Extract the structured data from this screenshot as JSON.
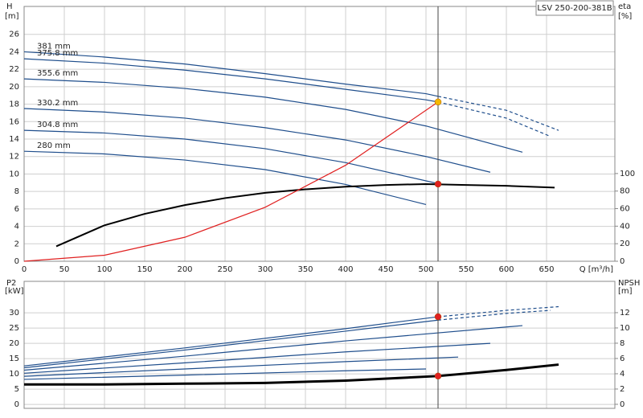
{
  "chart_data": [
    {
      "type": "line",
      "title": "LSV 250-200-381B",
      "x_label": "Q [m³/h]",
      "y_label": "H",
      "y_unit": "[m]",
      "y2_label": "eta",
      "y2_unit": "[%]",
      "xlim": [
        0,
        735
      ],
      "ylim": [
        0,
        29.2
      ],
      "y2lim": [
        0,
        290.5
      ],
      "xticks": [
        0,
        50,
        100,
        150,
        200,
        250,
        300,
        350,
        400,
        450,
        500,
        550,
        600,
        650
      ],
      "yticks": [
        0,
        2,
        4,
        6,
        8,
        10,
        12,
        14,
        16,
        18,
        20,
        22,
        24,
        26
      ],
      "y2ticks": [
        0,
        20,
        40,
        60,
        80,
        100
      ],
      "grid": true,
      "series": [
        {
          "name": "381 mm",
          "color": "#1f4e8c",
          "x": [
            0,
            100,
            200,
            300,
            400,
            500,
            515
          ],
          "values": [
            24,
            23.4,
            22.6,
            21.5,
            20.3,
            19.2,
            18.9
          ]
        },
        {
          "color": "#1f4e8c",
          "line_style": "dashed",
          "x": [
            515,
            600,
            665
          ],
          "values": [
            18.9,
            17.3,
            15.0
          ]
        },
        {
          "name": "375.8 mm",
          "color": "#1f4e8c",
          "x": [
            0,
            100,
            200,
            300,
            400,
            500,
            515
          ],
          "values": [
            23.2,
            22.7,
            21.9,
            20.9,
            19.7,
            18.5,
            18.25
          ]
        },
        {
          "color": "#1f4e8c",
          "line_style": "dashed",
          "x": [
            515,
            600,
            655
          ],
          "values": [
            18.25,
            16.4,
            14.3
          ]
        },
        {
          "name": "355.6 mm",
          "color": "#1f4e8c",
          "x": [
            0,
            100,
            200,
            300,
            400,
            500,
            620
          ],
          "values": [
            20.9,
            20.5,
            19.8,
            18.8,
            17.4,
            15.5,
            12.5
          ]
        },
        {
          "name": "330.2 mm",
          "color": "#1f4e8c",
          "x": [
            0,
            100,
            200,
            300,
            400,
            500,
            580
          ],
          "values": [
            17.5,
            17.1,
            16.4,
            15.3,
            13.9,
            12.0,
            10.2
          ]
        },
        {
          "name": "304.8 mm",
          "color": "#1f4e8c",
          "x": [
            0,
            100,
            200,
            300,
            400,
            515
          ],
          "values": [
            15.0,
            14.7,
            14.0,
            12.9,
            11.3,
            8.9
          ]
        },
        {
          "name": "280 mm",
          "color": "#1f4e8c",
          "x": [
            0,
            100,
            200,
            300,
            400,
            500
          ],
          "values": [
            12.6,
            12.3,
            11.6,
            10.5,
            8.8,
            6.5
          ]
        },
        {
          "color": "#000000",
          "axis": "y2",
          "width": 2,
          "x": [
            40,
            100,
            150,
            200,
            250,
            300,
            350,
            400,
            450,
            500,
            550,
            600,
            660
          ],
          "values": [
            17,
            41,
            54,
            64,
            72,
            78,
            82,
            85,
            87,
            88,
            87,
            86,
            84
          ]
        },
        {
          "color": "#e02020",
          "x": [
            0,
            100,
            200,
            300,
            400,
            515
          ],
          "values": [
            0,
            0.69,
            2.75,
            6.19,
            11.0,
            18.25
          ]
        }
      ],
      "vline": 515,
      "markers": [
        {
          "x": 515,
          "y": 18.25,
          "color": "#f5b800"
        },
        {
          "x": 515,
          "y": 88,
          "axis": "y2",
          "color": "#e02020"
        }
      ]
    },
    {
      "type": "line",
      "y_label": "P2",
      "y_unit": "[kW]",
      "y2_label": "NPSH",
      "y2_unit": "[m]",
      "xlim": [
        0,
        735
      ],
      "ylim": [
        -1.3,
        40.3
      ],
      "y2lim": [
        -0.53,
        16.1
      ],
      "xticks": [
        0,
        50,
        100,
        150,
        200,
        250,
        300,
        350,
        400,
        450,
        500,
        550,
        600,
        650
      ],
      "yticks": [
        0,
        5,
        10,
        15,
        20,
        25,
        30
      ],
      "y2ticks": [
        0,
        2,
        4,
        6,
        8,
        10,
        12
      ],
      "grid": true,
      "series": [
        {
          "color": "#1f4e8c",
          "x": [
            0,
            200,
            400,
            515
          ],
          "values": [
            12.6,
            18.5,
            24.8,
            28.7
          ]
        },
        {
          "color": "#1f4e8c",
          "line_style": "dashed",
          "x": [
            515,
            600,
            665
          ],
          "values": [
            28.7,
            30.8,
            32
          ]
        },
        {
          "color": "#1f4e8c",
          "x": [
            0,
            200,
            400,
            515
          ],
          "values": [
            12.0,
            17.8,
            24.0,
            27.6
          ]
        },
        {
          "color": "#1f4e8c",
          "line_style": "dashed",
          "x": [
            515,
            600,
            655
          ],
          "values": [
            27.6,
            29.8,
            30.8
          ]
        },
        {
          "color": "#1f4e8c",
          "x": [
            0,
            200,
            400,
            620
          ],
          "values": [
            11.2,
            15.8,
            20.8,
            25.8
          ]
        },
        {
          "color": "#1f4e8c",
          "x": [
            0,
            200,
            400,
            580
          ],
          "values": [
            10.2,
            13.6,
            17.2,
            20
          ]
        },
        {
          "color": "#1f4e8c",
          "x": [
            0,
            200,
            400,
            540
          ],
          "values": [
            9.2,
            11.6,
            14.0,
            15.5
          ]
        },
        {
          "color": "#1f4e8c",
          "x": [
            0,
            200,
            400,
            500
          ],
          "values": [
            8.2,
            9.6,
            11.0,
            11.6
          ]
        },
        {
          "color": "#000000",
          "axis": "y2",
          "width": 3,
          "x": [
            0,
            100,
            200,
            300,
            400,
            515,
            600,
            665
          ],
          "values": [
            2.6,
            2.6,
            2.7,
            2.8,
            3.1,
            3.7,
            4.5,
            5.2
          ]
        }
      ],
      "vline": 515,
      "markers": [
        {
          "x": 515,
          "y": 28.7,
          "color": "#e02020"
        },
        {
          "x": 515,
          "y": 3.7,
          "axis": "y2",
          "color": "#e02020"
        }
      ]
    }
  ]
}
